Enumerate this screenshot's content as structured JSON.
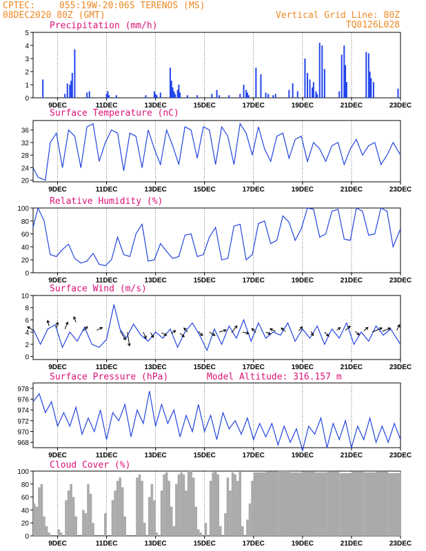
{
  "header": {
    "source": "CPTEC:",
    "location": "055:19W-20:06S  TERENOS (MS)",
    "run": "08DEC2020 80Z (GMT)",
    "grid_note": "Vertical Grid Line: 80Z",
    "model": "TQ0126L028"
  },
  "panels": {
    "precip": {
      "title": "Precipitation (mm/h)"
    },
    "temp": {
      "title": "Surface Temperature (nC)"
    },
    "rh": {
      "title": "Relative Humidity (%)"
    },
    "wind": {
      "title": "Surface Wind (m/s)"
    },
    "pres": {
      "title": "Surface Pressure (hPa)",
      "extra": "Model Altitude: 316.157 m"
    },
    "cloud": {
      "title": "Cloud Cover (%)"
    }
  },
  "x_tick_labels": [
    "9DEC",
    "11DEC",
    "13DEC",
    "15DEC",
    "17DEC",
    "19DEC",
    "21DEC",
    "23DEC"
  ],
  "chart_data": [
    {
      "type": "bar",
      "title": "Precipitation (mm/h)",
      "ylim": [
        0,
        5
      ],
      "yticks": [
        "0",
        "1",
        "2",
        "3",
        "4",
        "5"
      ],
      "x_days": [
        6.15,
        8.4,
        9.3,
        9.4,
        9.5,
        9.55,
        9.6,
        9.7,
        10.2,
        10.3,
        11.0,
        11.05,
        11.1,
        11.4,
        12.6,
        12.95,
        13.0,
        13.05,
        13.2,
        13.6,
        13.65,
        13.7,
        13.75,
        13.8,
        13.9,
        13.95,
        14.0,
        14.3,
        14.7,
        15.3,
        15.5,
        15.6,
        16.0,
        16.45,
        16.6,
        16.7,
        16.75,
        16.8,
        17.1,
        17.3,
        17.5,
        17.6,
        17.8,
        17.9,
        18.45,
        18.6,
        18.8,
        19.1,
        19.2,
        19.3,
        19.4,
        19.45,
        19.55,
        19.6,
        19.7,
        19.8,
        19.9,
        20.5,
        20.6,
        20.7,
        20.75,
        20.8,
        21.6,
        21.7,
        21.75,
        21.8,
        21.9,
        22.9
      ],
      "values": [
        0.05,
        1.4,
        0.3,
        1.1,
        1.0,
        1.3,
        1.9,
        3.7,
        0.4,
        0.5,
        0.3,
        0.5,
        0.2,
        0.2,
        0.2,
        0.5,
        0.3,
        0.2,
        0.4,
        2.3,
        1.3,
        0.8,
        0.5,
        0.3,
        0.6,
        1.0,
        0.4,
        0.2,
        0.2,
        0.3,
        0.6,
        0.2,
        0.2,
        0.3,
        1.0,
        0.6,
        0.4,
        0.2,
        2.3,
        1.8,
        0.4,
        0.3,
        0.2,
        0.3,
        0.6,
        1.1,
        0.5,
        3.0,
        1.9,
        1.4,
        0.8,
        1.2,
        0.5,
        0.3,
        4.2,
        4.0,
        2.2,
        0.5,
        3.3,
        4.0,
        2.5,
        1.2,
        3.5,
        3.4,
        2.0,
        1.5,
        1.2,
        0.7
      ]
    },
    {
      "type": "line",
      "title": "Surface Temperature (nC)",
      "ylim": [
        19.5,
        39
      ],
      "yticks": [
        "20",
        "24",
        "28",
        "32",
        "36"
      ],
      "x_days": [
        8.0,
        8.2,
        8.5,
        8.7,
        8.95,
        9.2,
        9.45,
        9.7,
        9.95,
        10.2,
        10.45,
        10.7,
        10.95,
        11.2,
        11.45,
        11.7,
        11.95,
        12.2,
        12.45,
        12.7,
        12.95,
        13.2,
        13.45,
        13.7,
        13.95,
        14.2,
        14.45,
        14.7,
        14.95,
        15.2,
        15.45,
        15.7,
        15.95,
        16.2,
        16.45,
        16.7,
        16.95,
        17.2,
        17.45,
        17.7,
        17.95,
        18.2,
        18.45,
        18.7,
        18.95,
        19.2,
        19.45,
        19.7,
        19.95,
        20.2,
        20.45,
        20.7,
        20.95,
        21.2,
        21.45,
        21.7,
        21.95,
        22.2,
        22.45,
        22.7,
        23.0
      ],
      "values": [
        24,
        21,
        20,
        32,
        35,
        24,
        36,
        34,
        24,
        37,
        38,
        26,
        32,
        36,
        35,
        23,
        35,
        34,
        24,
        36,
        30,
        25,
        36,
        31,
        25,
        37,
        36,
        27,
        37,
        36,
        25,
        37,
        34,
        25,
        38,
        35,
        28,
        37,
        30,
        26,
        34,
        35,
        27,
        33,
        34,
        26,
        32,
        30,
        26,
        31,
        32,
        25,
        30,
        33,
        28,
        31,
        32,
        25,
        28,
        32,
        28
      ]
    },
    {
      "type": "line",
      "title": "Relative Humidity (%)",
      "ylim": [
        0,
        100
      ],
      "yticks": [
        "0",
        "20",
        "40",
        "60",
        "80",
        "100"
      ],
      "x_days": [
        8.0,
        8.2,
        8.45,
        8.7,
        8.95,
        9.2,
        9.45,
        9.7,
        9.95,
        10.2,
        10.45,
        10.7,
        10.95,
        11.2,
        11.45,
        11.7,
        11.95,
        12.2,
        12.45,
        12.7,
        12.95,
        13.2,
        13.45,
        13.7,
        13.95,
        14.2,
        14.45,
        14.7,
        14.95,
        15.2,
        15.45,
        15.7,
        15.95,
        16.2,
        16.45,
        16.7,
        16.95,
        17.2,
        17.45,
        17.7,
        17.95,
        18.2,
        18.45,
        18.7,
        18.95,
        19.2,
        19.45,
        19.7,
        19.95,
        20.2,
        20.45,
        20.7,
        20.95,
        21.2,
        21.45,
        21.7,
        21.95,
        22.2,
        22.45,
        22.7,
        23.0
      ],
      "values": [
        70,
        100,
        80,
        28,
        25,
        36,
        44,
        22,
        15,
        18,
        30,
        13,
        11,
        20,
        55,
        28,
        25,
        60,
        75,
        18,
        20,
        45,
        33,
        22,
        25,
        58,
        60,
        25,
        28,
        55,
        70,
        20,
        22,
        72,
        75,
        20,
        28,
        76,
        80,
        45,
        50,
        88,
        78,
        50,
        68,
        100,
        98,
        55,
        60,
        95,
        98,
        52,
        50,
        100,
        95,
        58,
        60,
        100,
        95,
        40,
        68
      ]
    },
    {
      "type": "line",
      "title": "Surface Wind (m/s)",
      "ylim": [
        -0.5,
        10
      ],
      "yticks": [
        "0",
        "2",
        "4",
        "6",
        "8",
        "10"
      ],
      "x_days": [
        8.0,
        8.3,
        8.6,
        8.9,
        9.2,
        9.5,
        9.8,
        10.1,
        10.4,
        10.7,
        11.0,
        11.3,
        11.55,
        11.8,
        12.1,
        12.4,
        12.7,
        13.0,
        13.3,
        13.6,
        13.9,
        14.2,
        14.5,
        14.8,
        15.1,
        15.4,
        15.7,
        16.0,
        16.3,
        16.6,
        16.9,
        17.2,
        17.5,
        17.8,
        18.1,
        18.4,
        18.7,
        19.0,
        19.3,
        19.6,
        19.9,
        20.2,
        20.5,
        20.8,
        21.1,
        21.4,
        21.7,
        22.0,
        22.3,
        22.6,
        23.0
      ],
      "values": [
        4.5,
        2.0,
        4.5,
        5.2,
        1.5,
        4.0,
        2.5,
        4.8,
        2.0,
        1.5,
        2.8,
        8.5,
        4.5,
        3.0,
        5.3,
        3.5,
        2.5,
        4.0,
        3.0,
        4.5,
        1.5,
        4.0,
        5.5,
        3.5,
        1.0,
        4.5,
        2.0,
        5.0,
        3.0,
        6.0,
        2.5,
        5.5,
        3.0,
        4.0,
        3.5,
        5.5,
        2.5,
        4.5,
        3.0,
        5.0,
        2.0,
        4.5,
        3.0,
        5.5,
        2.0,
        4.0,
        2.5,
        5.0,
        3.5,
        4.5,
        2.0
      ],
      "vectors": [
        {
          "day": 8.0,
          "speed": 4.3,
          "dx": -8,
          "dy": -5
        },
        {
          "day": 8.65,
          "speed": 5.0,
          "dx": -2,
          "dy": -8
        },
        {
          "day": 8.95,
          "speed": 4.7,
          "dx": 2,
          "dy": -8
        },
        {
          "day": 9.3,
          "speed": 4.5,
          "dx": 4,
          "dy": -10
        },
        {
          "day": 9.75,
          "speed": 5.6,
          "dx": -3,
          "dy": -8
        },
        {
          "day": 10.05,
          "speed": 4.2,
          "dx": 6,
          "dy": -6
        },
        {
          "day": 10.6,
          "speed": 4.3,
          "dx": 8,
          "dy": -4
        },
        {
          "day": 11.55,
          "speed": 4.2,
          "dx": 8,
          "dy": 13
        },
        {
          "day": 11.85,
          "speed": 4.0,
          "dx": 3,
          "dy": 20
        },
        {
          "day": 12.5,
          "speed": 4.0,
          "dx": 4,
          "dy": 9
        },
        {
          "day": 12.8,
          "speed": 3.9,
          "dx": 4,
          "dy": 7
        },
        {
          "day": 13.25,
          "speed": 3.9,
          "dx": 7,
          "dy": 4
        },
        {
          "day": 13.65,
          "speed": 3.8,
          "dx": 6,
          "dy": -4
        },
        {
          "day": 14.0,
          "speed": 3.8,
          "dx": 6,
          "dy": 5
        },
        {
          "day": 14.3,
          "speed": 4.0,
          "dx": -5,
          "dy": -6
        },
        {
          "day": 14.75,
          "speed": 4.1,
          "dx": 6,
          "dy": 6
        },
        {
          "day": 15.2,
          "speed": 4.0,
          "dx": 8,
          "dy": 5
        },
        {
          "day": 15.6,
          "speed": 4.0,
          "dx": 10,
          "dy": -3
        },
        {
          "day": 16.1,
          "speed": 3.9,
          "dx": 8,
          "dy": -10
        },
        {
          "day": 16.55,
          "speed": 4.0,
          "dx": 9,
          "dy": 2
        },
        {
          "day": 17.1,
          "speed": 3.9,
          "dx": -6,
          "dy": -6
        },
        {
          "day": 17.5,
          "speed": 4.0,
          "dx": 7,
          "dy": 3
        },
        {
          "day": 17.9,
          "speed": 4.1,
          "dx": -8,
          "dy": -4
        },
        {
          "day": 18.3,
          "speed": 4.1,
          "dx": -6,
          "dy": -5
        },
        {
          "day": 18.85,
          "speed": 4.2,
          "dx": 5,
          "dy": -6
        },
        {
          "day": 19.35,
          "speed": 4.1,
          "dx": 3,
          "dy": 6
        },
        {
          "day": 19.9,
          "speed": 4.0,
          "dx": 6,
          "dy": 6
        },
        {
          "day": 20.4,
          "speed": 4.3,
          "dx": 5,
          "dy": -4
        },
        {
          "day": 20.75,
          "speed": 4.3,
          "dx": 7,
          "dy": -6
        },
        {
          "day": 21.15,
          "speed": 4.1,
          "dx": 6,
          "dy": 5
        },
        {
          "day": 21.5,
          "speed": 4.2,
          "dx": 6,
          "dy": -5
        },
        {
          "day": 21.85,
          "speed": 4.0,
          "dx": 14,
          "dy": -6
        },
        {
          "day": 22.25,
          "speed": 4.1,
          "dx": 12,
          "dy": -5
        },
        {
          "day": 22.85,
          "speed": 4.3,
          "dx": 4,
          "dy": -8
        }
      ]
    },
    {
      "type": "line",
      "title": "Surface Pressure (hPa)",
      "ylim": [
        967,
        979
      ],
      "yticks": [
        "968",
        "970",
        "972",
        "974",
        "976",
        "978"
      ],
      "x_days": [
        8.0,
        8.25,
        8.5,
        8.75,
        9.0,
        9.25,
        9.5,
        9.75,
        10.0,
        10.25,
        10.5,
        10.75,
        11.0,
        11.25,
        11.5,
        11.75,
        12.0,
        12.25,
        12.5,
        12.75,
        13.0,
        13.25,
        13.5,
        13.75,
        14.0,
        14.25,
        14.5,
        14.75,
        15.0,
        15.25,
        15.5,
        15.75,
        16.0,
        16.25,
        16.5,
        16.75,
        17.0,
        17.25,
        17.5,
        17.75,
        18.0,
        18.25,
        18.5,
        18.75,
        19.0,
        19.25,
        19.5,
        19.75,
        20.0,
        20.25,
        20.5,
        20.75,
        21.0,
        21.25,
        21.5,
        21.75,
        22.0,
        22.25,
        22.5,
        22.75,
        23.0
      ],
      "values": [
        975.5,
        977.0,
        973.5,
        975.5,
        971.0,
        973.5,
        971.0,
        974.5,
        969.5,
        972.5,
        970.0,
        974.0,
        968.5,
        973.5,
        972.0,
        975.0,
        969.0,
        974.0,
        971.5,
        977.5,
        971.0,
        975.0,
        971.5,
        974.0,
        969.0,
        973.0,
        970.0,
        975.0,
        970.0,
        973.0,
        968.5,
        973.5,
        970.5,
        972.0,
        969.5,
        972.5,
        968.5,
        971.5,
        969.0,
        971.5,
        967.5,
        971.0,
        968.0,
        970.5,
        966.5,
        971.0,
        969.5,
        972.5,
        967.0,
        971.5,
        968.5,
        972.0,
        967.0,
        971.0,
        968.5,
        972.5,
        968.0,
        971.0,
        968.0,
        971.5,
        968.5
      ]
    },
    {
      "type": "bar",
      "title": "Cloud Cover (%)",
      "ylim": [
        0,
        100
      ],
      "yticks": [
        "0",
        "20",
        "40",
        "60",
        "80",
        "100"
      ],
      "x_days": [
        8.0,
        8.1,
        8.2,
        8.3,
        8.4,
        8.5,
        8.6,
        8.7,
        8.8,
        8.9,
        9.0,
        9.1,
        9.2,
        9.3,
        9.4,
        9.5,
        9.6,
        9.7,
        9.8,
        9.9,
        10.0,
        10.1,
        10.2,
        10.3,
        10.4,
        10.5,
        10.6,
        10.7,
        10.8,
        10.9,
        11.0,
        11.1,
        11.2,
        11.3,
        11.4,
        11.5,
        11.6,
        11.7,
        11.8,
        11.9,
        12.0,
        12.1,
        12.2,
        12.3,
        12.4,
        12.5,
        12.6,
        12.7,
        12.8,
        12.9,
        13.0,
        13.1,
        13.2,
        13.3,
        13.4,
        13.5,
        13.6,
        13.7,
        13.8,
        13.9,
        14.0,
        14.1,
        14.2,
        14.3,
        14.4,
        14.5,
        14.6,
        14.7,
        14.8,
        14.9,
        15.0,
        15.1,
        15.2,
        15.3,
        15.4,
        15.5,
        15.6,
        15.7,
        15.8,
        15.9,
        16.0,
        16.1,
        16.2,
        16.3,
        16.4,
        16.5,
        16.6,
        16.7,
        16.8,
        16.9,
        17.0,
        17.5,
        18.0,
        18.5,
        19.0,
        19.5,
        20.0,
        20.5,
        21.0,
        21.5,
        22.0,
        22.5,
        23.0
      ],
      "values": [
        50,
        45,
        75,
        80,
        30,
        15,
        5,
        0,
        0,
        0,
        10,
        5,
        0,
        55,
        70,
        80,
        60,
        30,
        0,
        0,
        40,
        35,
        80,
        65,
        20,
        0,
        0,
        0,
        0,
        35,
        0,
        0,
        55,
        70,
        85,
        90,
        75,
        30,
        0,
        0,
        0,
        0,
        90,
        95,
        85,
        20,
        0,
        60,
        80,
        55,
        5,
        0,
        70,
        95,
        98,
        85,
        45,
        15,
        80,
        95,
        98,
        95,
        70,
        100,
        100,
        90,
        45,
        10,
        5,
        0,
        20,
        0,
        85,
        98,
        99,
        95,
        15,
        0,
        35,
        90,
        70,
        98,
        95,
        85,
        99,
        15,
        0,
        25,
        50,
        85,
        98,
        99,
        100,
        98,
        99,
        98,
        99,
        97,
        99,
        98,
        99,
        97,
        100
      ]
    }
  ]
}
